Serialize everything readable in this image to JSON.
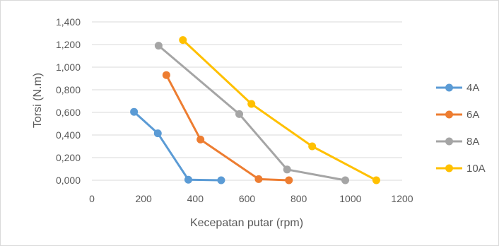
{
  "chart_data": {
    "type": "scatter",
    "title": "",
    "xlabel": "Kecepatan putar (rpm)",
    "ylabel": "Torsi (N.m)",
    "xlim": [
      0,
      1200
    ],
    "ylim": [
      0,
      1.4
    ],
    "x_ticks": [
      "0",
      "200",
      "400",
      "600",
      "800",
      "1000",
      "1200"
    ],
    "y_ticks": [
      "0,000",
      "0,200",
      "0,400",
      "0,600",
      "0,800",
      "1,000",
      "1,200",
      "1,400"
    ],
    "grid": "horizontal",
    "legend_position": "right",
    "series": [
      {
        "name": "4A",
        "color": "#5b9bd5",
        "points": [
          [
            163,
            0.605
          ],
          [
            255,
            0.415
          ],
          [
            373,
            0.005
          ],
          [
            500,
            0.0
          ]
        ]
      },
      {
        "name": "6A",
        "color": "#ed7d31",
        "points": [
          [
            288,
            0.93
          ],
          [
            420,
            0.36
          ],
          [
            645,
            0.01
          ],
          [
            762,
            0.0
          ]
        ]
      },
      {
        "name": "8A",
        "color": "#a5a5a5",
        "points": [
          [
            258,
            1.19
          ],
          [
            570,
            0.585
          ],
          [
            755,
            0.095
          ],
          [
            980,
            0.0
          ]
        ]
      },
      {
        "name": "10A",
        "color": "#ffc000",
        "points": [
          [
            352,
            1.24
          ],
          [
            617,
            0.675
          ],
          [
            852,
            0.3
          ],
          [
            1100,
            0.0
          ]
        ]
      }
    ]
  }
}
